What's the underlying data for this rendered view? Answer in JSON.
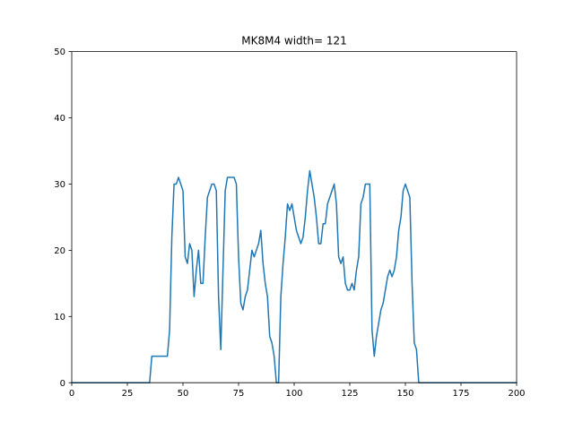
{
  "chart_data": {
    "type": "line",
    "title": "MK8M4 width= 121",
    "xlabel": "",
    "ylabel": "",
    "xlim": [
      0,
      200
    ],
    "ylim": [
      0,
      50
    ],
    "xticks": [
      0,
      25,
      50,
      75,
      100,
      125,
      150,
      175,
      200
    ],
    "yticks": [
      0,
      10,
      20,
      30,
      40,
      50
    ],
    "grid": false,
    "series": [
      {
        "color": "#1f77b4",
        "x": [
          0,
          35,
          36,
          43,
          44,
          45,
          46,
          47,
          48,
          49,
          50,
          51,
          52,
          53,
          54,
          55,
          56,
          57,
          58,
          59,
          60,
          61,
          62,
          63,
          64,
          65,
          66,
          67,
          68,
          69,
          70,
          71,
          72,
          73,
          74,
          75,
          76,
          77,
          78,
          79,
          80,
          81,
          82,
          83,
          84,
          85,
          86,
          87,
          88,
          89,
          90,
          91,
          92,
          93,
          94,
          95,
          96,
          97,
          98,
          99,
          100,
          101,
          102,
          103,
          104,
          105,
          106,
          107,
          108,
          109,
          110,
          111,
          112,
          113,
          114,
          115,
          116,
          117,
          118,
          119,
          120,
          121,
          122,
          123,
          124,
          125,
          126,
          127,
          128,
          129,
          130,
          131,
          132,
          133,
          134,
          135,
          136,
          137,
          138,
          139,
          140,
          141,
          142,
          143,
          144,
          145,
          146,
          147,
          148,
          149,
          150,
          151,
          152,
          153,
          154,
          155,
          156,
          200
        ],
        "y": [
          0,
          0,
          4,
          4,
          8,
          22,
          30,
          30,
          31,
          30,
          29,
          19,
          18,
          21,
          20,
          13,
          17,
          20,
          15,
          15,
          22,
          28,
          29,
          30,
          30,
          29,
          13,
          5,
          17,
          29,
          31,
          31,
          31,
          31,
          30,
          19,
          12,
          11,
          13,
          14,
          17,
          20,
          19,
          20,
          21,
          23,
          18,
          15,
          13,
          7,
          6,
          4,
          0,
          0,
          13,
          18,
          22,
          27,
          26,
          27,
          25,
          23,
          22,
          21,
          22,
          25,
          29,
          32,
          30,
          28,
          25,
          21,
          21,
          24,
          24,
          27,
          28,
          29,
          30,
          27,
          19,
          18,
          19,
          15,
          14,
          14,
          15,
          14,
          17,
          19,
          27,
          28,
          30,
          30,
          30,
          8,
          4,
          7,
          9,
          11,
          12,
          14,
          16,
          17,
          16,
          17,
          19,
          23,
          25,
          29,
          30,
          29,
          28,
          15,
          6,
          5,
          0,
          0
        ]
      }
    ]
  }
}
